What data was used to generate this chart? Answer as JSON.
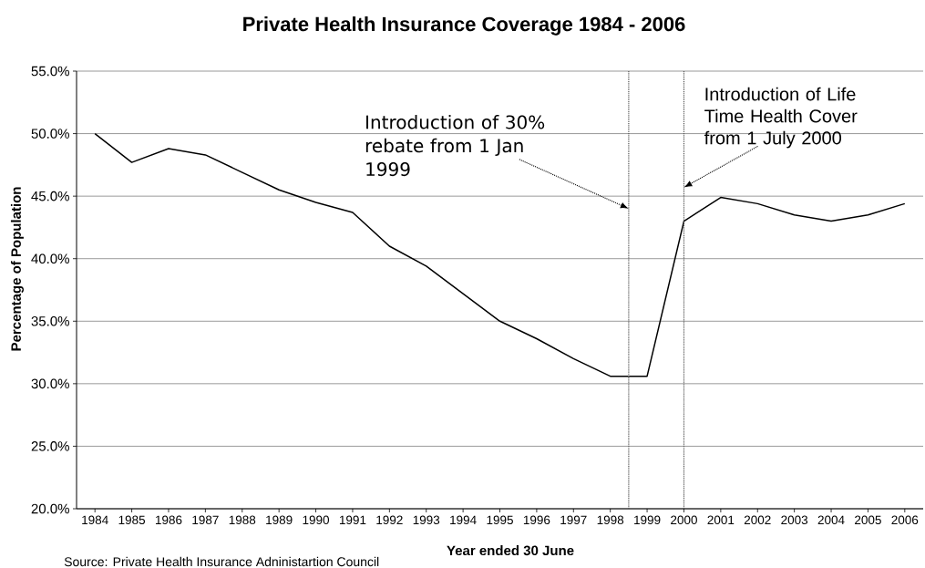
{
  "chart_data": {
    "type": "line",
    "title": "Private Health Insurance Coverage 1984 - 2006",
    "xlabel": "Year ended 30 June",
    "ylabel": "Percentage of Population",
    "x": [
      1984,
      1985,
      1986,
      1987,
      1988,
      1989,
      1990,
      1991,
      1992,
      1993,
      1994,
      1995,
      1996,
      1997,
      1998,
      1999,
      2000,
      2001,
      2002,
      2003,
      2004,
      2005,
      2006
    ],
    "series": [
      {
        "color": "#000000",
        "values": [
          50.0,
          47.7,
          48.8,
          48.3,
          46.9,
          45.5,
          44.5,
          43.7,
          41.0,
          39.4,
          37.2,
          35.0,
          33.6,
          32.0,
          30.6,
          30.6,
          43.0,
          44.9,
          44.4,
          43.5,
          43.0,
          43.5,
          44.4
        ]
      }
    ],
    "xlim": [
      1983.5,
      2006.5
    ],
    "xticks": [
      1984,
      1985,
      1986,
      1987,
      1988,
      1989,
      1990,
      1991,
      1992,
      1993,
      1994,
      1995,
      1996,
      1997,
      1998,
      1999,
      2000,
      2001,
      2002,
      2003,
      2004,
      2005,
      2006
    ],
    "ylim": [
      20,
      55
    ],
    "yticks": [
      {
        "value": 20,
        "label": "20.0%"
      },
      {
        "value": 25,
        "label": "25.0%"
      },
      {
        "value": 30,
        "label": "30.0%"
      },
      {
        "value": 35,
        "label": "35.0%"
      },
      {
        "value": 40,
        "label": "40.0%"
      },
      {
        "value": 45,
        "label": "45.0%"
      },
      {
        "value": 50,
        "label": "50.0%"
      },
      {
        "value": 55,
        "label": "55.0%"
      }
    ],
    "grid": "y",
    "ref_lines": [
      {
        "axis": "x",
        "value": 1998.5,
        "color": "#555555",
        "line_style": "dotted"
      },
      {
        "axis": "x",
        "value": 2000,
        "color": "#555555",
        "line_style": "dotted"
      }
    ],
    "annotations": [
      {
        "text": "Introduction of 30% rebate from 1 Jan 1999",
        "x": 1998.5,
        "y": 44.0
      },
      {
        "text": "Introduction of Life Time Health Cover from 1 July 2000",
        "x": 2000,
        "y": 45.7
      },
      "Source: Private Health Insurance Adninistartion Council"
    ]
  }
}
